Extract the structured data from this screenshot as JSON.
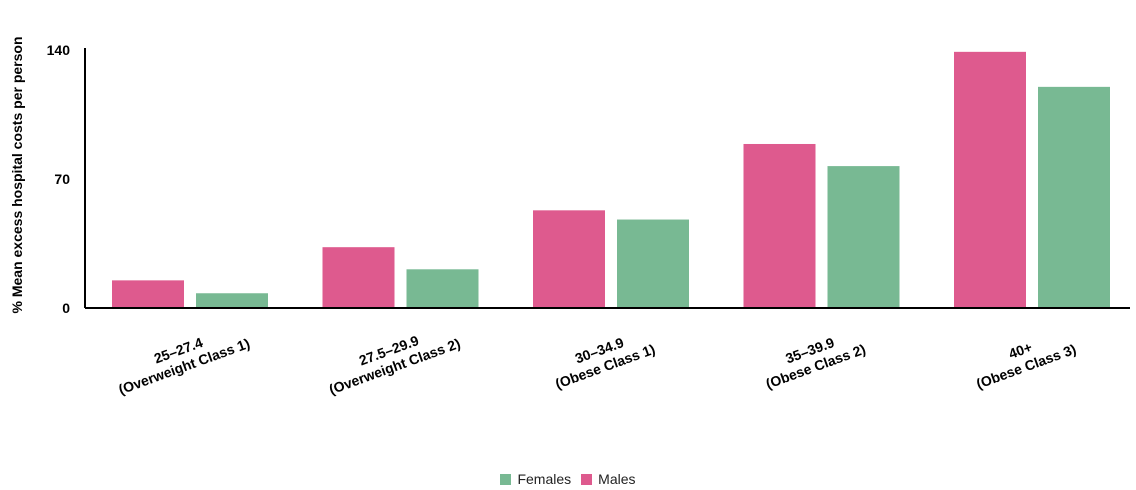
{
  "chart_data": {
    "type": "bar",
    "ylabel": "% Mean excess hospital costs per person",
    "ylim": [
      0,
      140
    ],
    "yticks": [
      "0",
      "70",
      "140"
    ],
    "categories": [
      [
        "25–27.4",
        "(Overweight Class 1)"
      ],
      [
        "27.5–29.9",
        "(Overweight Class 2)"
      ],
      [
        "30–34.9",
        "(Obese Class 1)"
      ],
      [
        "35–39.9",
        "(Obese Class 2)"
      ],
      [
        "40+",
        "(Obese Class 3)"
      ]
    ],
    "series": [
      {
        "name": "Males",
        "color": "#de5a8e",
        "values": [
          15,
          33,
          53,
          89,
          139
        ]
      },
      {
        "name": "Females",
        "color": "#78b993",
        "values": [
          8,
          21,
          48,
          77,
          120
        ]
      }
    ],
    "legend": {
      "placement": "bottom",
      "entries": [
        {
          "label": "Females",
          "color": "#78b993"
        },
        {
          "label": "Males",
          "color": "#de5a8e"
        }
      ]
    }
  }
}
